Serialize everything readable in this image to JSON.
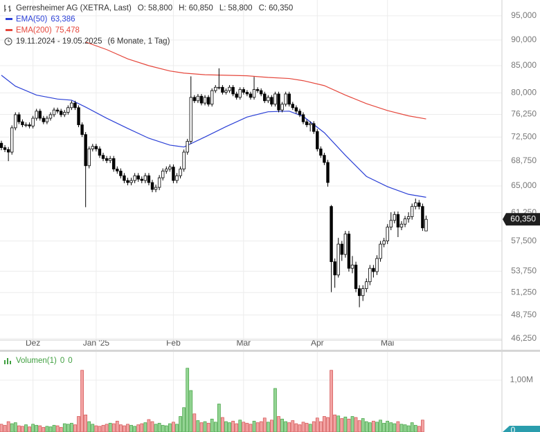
{
  "chart_data": [
    {
      "type": "candlestick",
      "title": "Gerresheimer AG (XETRA, Last)",
      "ohlc_labels": [
        {
          "label": "O:",
          "value": "58,800"
        },
        {
          "label": "H:",
          "value": "60,850"
        },
        {
          "label": "L:",
          "value": "58,800"
        },
        {
          "label": "C:",
          "value": "60,350"
        }
      ],
      "date_range": "19.11.2024 - 19.05.2025",
      "period": "(6 Monate, 1 Tag)",
      "last_label": "60,350",
      "categories": [
        null,
        null,
        null,
        null,
        null,
        null,
        null,
        null,
        null,
        "Dez",
        null,
        null,
        null,
        null,
        null,
        null,
        null,
        null,
        null,
        null,
        null,
        null,
        null,
        null,
        null,
        null,
        null,
        "Jan '25",
        null,
        null,
        null,
        null,
        null,
        null,
        null,
        null,
        null,
        null,
        null,
        null,
        null,
        null,
        null,
        null,
        null,
        null,
        null,
        null,
        null,
        "Feb",
        null,
        null,
        null,
        null,
        null,
        null,
        null,
        null,
        null,
        null,
        null,
        null,
        null,
        null,
        null,
        null,
        null,
        null,
        null,
        "Mär",
        null,
        null,
        null,
        null,
        null,
        null,
        null,
        null,
        null,
        null,
        null,
        null,
        null,
        null,
        null,
        null,
        null,
        null,
        null,
        null,
        "Apr",
        null,
        null,
        null,
        null,
        null,
        null,
        null,
        null,
        null,
        null,
        null,
        null,
        null,
        null,
        null,
        null,
        null,
        null,
        null,
        "Mai",
        null,
        null,
        null,
        null,
        null,
        null,
        null,
        null,
        null,
        null,
        null
      ],
      "open": [
        71.5,
        70.8,
        70.5,
        70.1,
        74.0,
        76.2,
        75.0,
        74.5,
        74.5,
        74.3,
        75.6,
        76.8,
        75.6,
        75.0,
        75.6,
        76.2,
        77.0,
        76.8,
        76.2,
        76.6,
        77.4,
        78.2,
        77.4,
        74.5,
        72.9,
        68.0,
        70.6,
        71.0,
        70.6,
        69.6,
        69.1,
        68.8,
        69.1,
        67.5,
        67.2,
        66.5,
        65.8,
        65.5,
        65.8,
        66.5,
        66.0,
        65.8,
        66.5,
        65.5,
        64.5,
        64.8,
        66.2,
        67.2,
        67.5,
        67.8,
        65.8,
        66.5,
        67.5,
        70.1,
        71.8,
        79.2,
        78.6,
        79.4,
        78.2,
        79.2,
        78.0,
        80.4,
        81.0,
        81.0,
        80.1,
        80.4,
        81.0,
        79.8,
        79.2,
        80.6,
        80.1,
        79.8,
        79.2,
        80.6,
        80.4,
        79.8,
        78.6,
        79.2,
        78.0,
        79.8,
        77.0,
        78.0,
        79.8,
        78.0,
        77.4,
        76.8,
        76.2,
        75.0,
        74.5,
        74.7,
        73.4,
        70.6,
        69.6,
        68.5,
        62.1,
        54.9,
        53.3,
        57.1,
        55.8,
        58.4,
        54.1,
        54.5,
        51.7,
        50.9,
        51.7,
        52.5,
        54.1,
        53.7,
        55.3,
        57.1,
        57.5,
        59.3,
        60.2,
        61.0,
        59.3,
        59.7,
        60.4,
        60.7,
        62.1,
        62.6,
        62.1,
        58.8
      ],
      "high": [
        71.9,
        71.2,
        70.9,
        74.4,
        76.6,
        76.6,
        75.4,
        74.9,
        74.9,
        76.0,
        77.2,
        77.2,
        76.0,
        76.0,
        76.6,
        77.4,
        77.4,
        77.2,
        77.0,
        77.8,
        78.6,
        78.6,
        77.8,
        74.9,
        73.3,
        71.0,
        71.4,
        71.4,
        71.0,
        70.0,
        69.5,
        69.5,
        69.5,
        67.9,
        67.6,
        66.9,
        66.2,
        66.2,
        66.9,
        66.9,
        66.4,
        66.9,
        66.9,
        65.9,
        65.2,
        66.6,
        67.6,
        67.9,
        68.2,
        68.2,
        66.9,
        67.9,
        70.5,
        72.2,
        83.0,
        79.6,
        79.8,
        79.8,
        79.6,
        79.6,
        80.8,
        81.4,
        84.5,
        81.4,
        80.8,
        81.4,
        81.4,
        80.2,
        81.0,
        81.0,
        80.5,
        80.2,
        82.9,
        81.0,
        80.8,
        80.2,
        79.6,
        79.6,
        80.2,
        80.2,
        78.4,
        80.2,
        80.2,
        78.4,
        77.8,
        77.2,
        76.6,
        75.4,
        75.1,
        75.1,
        73.8,
        71.0,
        70.0,
        68.9,
        62.3,
        55.3,
        57.9,
        57.5,
        58.8,
        58.8,
        55.6,
        54.9,
        52.1,
        52.1,
        52.9,
        54.5,
        54.5,
        55.7,
        57.5,
        57.9,
        59.7,
        61.3,
        61.4,
        61.4,
        60.1,
        60.8,
        61.3,
        62.5,
        63.2,
        63.0,
        62.5,
        60.85
      ],
      "low": [
        70.4,
        70.1,
        68.7,
        69.7,
        73.6,
        74.6,
        74.1,
        74.1,
        73.9,
        73.9,
        75.2,
        75.2,
        74.6,
        74.6,
        75.2,
        75.8,
        76.4,
        75.8,
        75.8,
        76.2,
        77.0,
        77.0,
        74.1,
        72.5,
        62.0,
        67.6,
        70.2,
        70.2,
        69.2,
        68.7,
        68.4,
        68.4,
        67.1,
        66.8,
        66.1,
        65.4,
        65.1,
        65.1,
        65.4,
        65.6,
        65.4,
        65.4,
        65.1,
        64.1,
        64.1,
        64.4,
        65.8,
        66.8,
        67.1,
        65.4,
        65.4,
        66.1,
        67.1,
        69.7,
        71.4,
        78.2,
        78.2,
        77.8,
        77.8,
        77.6,
        77.6,
        80.0,
        80.6,
        79.7,
        79.7,
        80.0,
        79.4,
        78.8,
        78.8,
        79.7,
        79.4,
        78.8,
        78.8,
        80.0,
        79.4,
        78.2,
        78.2,
        77.6,
        77.6,
        76.6,
        76.6,
        77.6,
        77.6,
        77.0,
        76.4,
        75.8,
        74.6,
        74.1,
        73.4,
        73.0,
        70.2,
        69.2,
        68.1,
        64.9,
        51.3,
        51.8,
        53.0,
        55.0,
        55.4,
        53.7,
        53.5,
        51.3,
        49.6,
        50.3,
        51.3,
        52.1,
        53.0,
        53.3,
        54.9,
        56.7,
        57.1,
        58.9,
        59.8,
        58.0,
        58.9,
        59.3,
        59.9,
        60.3,
        61.7,
        61.7,
        58.8,
        58.8
      ],
      "close": [
        70.8,
        70.5,
        70.1,
        74.0,
        76.2,
        75.0,
        74.5,
        74.5,
        74.3,
        75.6,
        76.8,
        75.6,
        75.0,
        75.6,
        76.2,
        77.0,
        76.8,
        76.2,
        76.6,
        77.4,
        78.2,
        77.4,
        74.5,
        72.9,
        68.0,
        70.6,
        71.0,
        70.6,
        69.6,
        69.1,
        68.8,
        69.1,
        67.5,
        67.2,
        66.5,
        65.8,
        65.5,
        65.8,
        66.5,
        66.0,
        65.8,
        66.5,
        65.5,
        64.5,
        64.8,
        66.2,
        67.2,
        67.5,
        67.8,
        65.8,
        66.5,
        67.5,
        70.1,
        71.8,
        79.2,
        78.6,
        79.4,
        78.2,
        79.2,
        78.0,
        80.4,
        81.0,
        81.0,
        80.1,
        80.4,
        81.0,
        79.8,
        79.2,
        80.6,
        80.1,
        79.8,
        79.2,
        80.6,
        80.4,
        79.8,
        78.6,
        79.2,
        78.0,
        79.8,
        77.0,
        78.0,
        79.8,
        78.0,
        77.4,
        76.8,
        76.2,
        75.0,
        74.5,
        74.7,
        73.4,
        70.6,
        69.6,
        68.5,
        65.5,
        54.9,
        53.3,
        57.1,
        55.8,
        58.4,
        54.1,
        54.5,
        51.7,
        50.9,
        51.7,
        52.5,
        54.1,
        53.7,
        55.3,
        57.1,
        57.5,
        59.3,
        60.2,
        61.0,
        59.3,
        59.7,
        60.4,
        60.7,
        62.1,
        62.6,
        62.1,
        59.2,
        60.35
      ],
      "up_color": "#ffffff",
      "down_color": "#000000",
      "candle_stroke": "#000000",
      "series": [
        {
          "name": "EMA(50)",
          "color": "#2a3fd6",
          "legend_value": "63,386",
          "x": [
            0,
            4,
            10,
            16,
            20,
            24,
            30,
            36,
            42,
            48,
            52,
            58,
            64,
            70,
            76,
            82,
            86,
            92,
            98,
            104,
            110,
            116,
            121
          ],
          "values": [
            83.2,
            81.2,
            79.6,
            78.9,
            78.7,
            77.5,
            75.6,
            73.9,
            72.3,
            71.2,
            70.9,
            72.5,
            74.2,
            75.8,
            76.7,
            76.8,
            75.9,
            73.2,
            69.6,
            66.4,
            64.9,
            63.8,
            63.386
          ]
        },
        {
          "name": "EMA(200)",
          "color": "#e5463b",
          "legend_value": "75,478",
          "x": [
            24,
            30,
            36,
            42,
            48,
            52,
            58,
            64,
            70,
            76,
            82,
            86,
            92,
            98,
            104,
            110,
            116,
            121
          ],
          "values": [
            89.6,
            88.1,
            86.3,
            85.0,
            84.0,
            83.6,
            83.3,
            83.2,
            83.1,
            82.8,
            82.6,
            82.2,
            81.3,
            79.6,
            78.1,
            76.9,
            76.0,
            75.478
          ]
        }
      ],
      "ylim": [
        46.1,
        98.4
      ],
      "log": true,
      "grid": true,
      "yticks": [
        {
          "value": 95,
          "label": "95,000"
        },
        {
          "value": 90,
          "label": "90,000"
        },
        {
          "value": 85,
          "label": "85,000"
        },
        {
          "value": 80,
          "label": "80,000"
        },
        {
          "value": 76.25,
          "label": "76,250"
        },
        {
          "value": 72.5,
          "label": "72,500"
        },
        {
          "value": 68.75,
          "label": "68,750"
        },
        {
          "value": 65,
          "label": "65,000"
        },
        {
          "value": 61.25,
          "label": "61,250"
        },
        {
          "value": 57.5,
          "label": "57,500"
        },
        {
          "value": 53.75,
          "label": "53,750"
        },
        {
          "value": 51.25,
          "label": "51,250"
        },
        {
          "value": 48.75,
          "label": "48,750"
        },
        {
          "value": 46.25,
          "label": "46,250"
        }
      ]
    },
    {
      "type": "bar",
      "title": "Volumen(1)",
      "legend_values": [
        "0",
        "0"
      ],
      "last_label": "0",
      "values": [
        150000,
        130000,
        200000,
        160000,
        180000,
        120000,
        110000,
        140000,
        100000,
        150000,
        130000,
        120000,
        90000,
        110000,
        100000,
        130000,
        120000,
        90000,
        160000,
        150000,
        170000,
        140000,
        300000,
        1190000,
        330000,
        200000,
        150000,
        120000,
        110000,
        130000,
        150000,
        170000,
        160000,
        210000,
        140000,
        120000,
        150000,
        130000,
        110000,
        140000,
        160000,
        180000,
        240000,
        200000,
        150000,
        170000,
        130000,
        120000,
        160000,
        190000,
        150000,
        300000,
        470000,
        1230000,
        800000,
        350000,
        220000,
        180000,
        200000,
        170000,
        250000,
        190000,
        540000,
        280000,
        200000,
        180000,
        210000,
        160000,
        230000,
        190000,
        170000,
        150000,
        210000,
        180000,
        200000,
        270000,
        190000,
        230000,
        840000,
        300000,
        250000,
        200000,
        180000,
        220000,
        160000,
        140000,
        190000,
        170000,
        150000,
        200000,
        270000,
        200000,
        300000,
        280000,
        1190000,
        330000,
        310000,
        260000,
        290000,
        250000,
        300000,
        280000,
        220000,
        260000,
        200000,
        180000,
        210000,
        190000,
        230000,
        170000,
        210000,
        180000,
        160000,
        200000,
        150000,
        140000,
        120000,
        180000,
        130000,
        110000,
        230000,
        0
      ],
      "up_color": "#93d493",
      "up_stroke": "#3f9f3f",
      "down_color": "#f2a3a3",
      "down_stroke": "#d24b4b",
      "ylim": [
        0,
        1533000
      ],
      "yticks": [
        {
          "value": 1000000,
          "label": "1,00M"
        }
      ]
    }
  ]
}
